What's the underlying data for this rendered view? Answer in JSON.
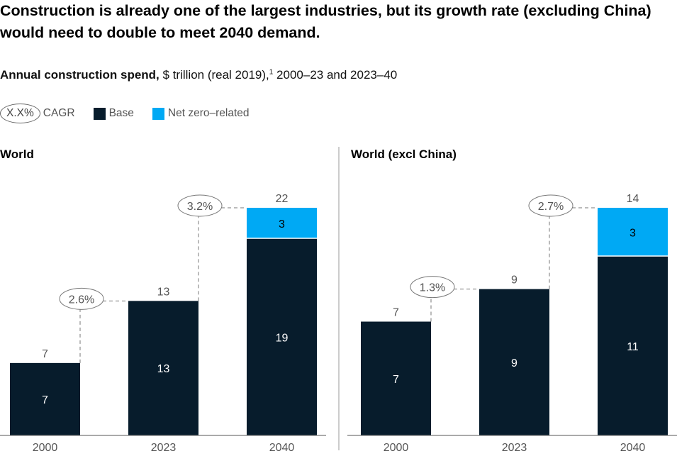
{
  "title": "Construction is already one of the largest industries, but its growth rate (excluding China) would need to double to meet 2040 demand.",
  "subtitle": {
    "bold": "Annual construction spend,",
    "rest": " $ trillion (real 2019),",
    "footnote": "1",
    "tail": " 2000–23 and 2023–40"
  },
  "legend": {
    "cagr_sample": "X.X%",
    "cagr_label": "CAGR",
    "base": "Base",
    "net_zero": "Net zero–related"
  },
  "colors": {
    "base": "#071C2C",
    "net_zero": "#00A9F4"
  },
  "chart_data": [
    {
      "type": "bar",
      "stacked": true,
      "title": "World",
      "categories": [
        "2000",
        "2023",
        "2040"
      ],
      "series": [
        {
          "name": "Base",
          "values": [
            7,
            13,
            19
          ]
        },
        {
          "name": "Net zero-related",
          "values": [
            0,
            0,
            3
          ]
        }
      ],
      "totals": [
        "7",
        "13",
        "22"
      ],
      "cagr": [
        "2.6%",
        "3.2%"
      ],
      "ylim": [
        0,
        22
      ]
    },
    {
      "type": "bar",
      "stacked": true,
      "title": "World (excl China)",
      "categories": [
        "2000",
        "2023",
        "2040"
      ],
      "series": [
        {
          "name": "Base",
          "values": [
            7,
            9,
            11
          ]
        },
        {
          "name": "Net zero-related",
          "values": [
            0,
            0,
            3
          ]
        }
      ],
      "totals": [
        "7",
        "9",
        "14"
      ],
      "cagr": [
        "1.3%",
        "2.7%"
      ],
      "ylim": [
        0,
        14
      ]
    }
  ]
}
